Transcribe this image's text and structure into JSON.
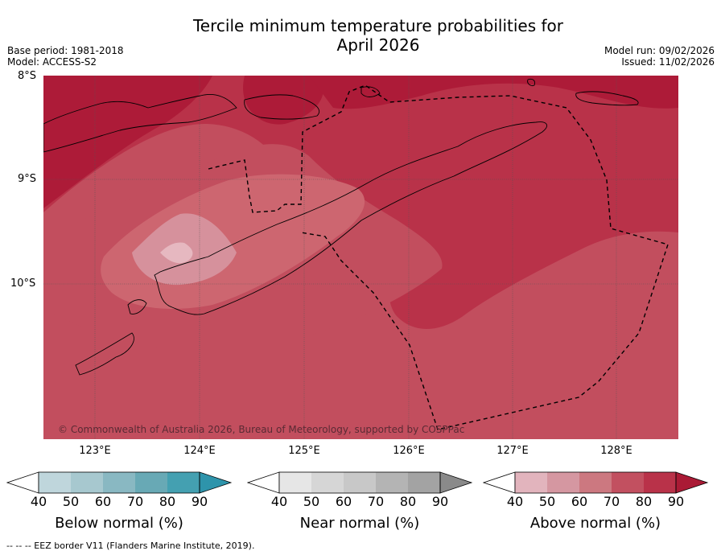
{
  "title_line1": "Tercile minimum temperature probabilities for",
  "title_line2": "April 2026",
  "base_period": "Base period: 1981-2018",
  "model": "Model: ACCESS-S2",
  "model_run": "Model run: 09/02/2026",
  "issued": "Issued: 11/02/2026",
  "lat_labels": [
    "8°S",
    "9°S",
    "10°S"
  ],
  "lon_labels": [
    "123°E",
    "124°E",
    "125°E",
    "126°E",
    "127°E",
    "128°E"
  ],
  "copyright": "© Commonwealth of Australia 2026, Bureau of Meteorology, supported by COSPPac",
  "legend": {
    "ticks": [
      "40",
      "50",
      "60",
      "70",
      "80",
      "90"
    ],
    "below": {
      "label": "Below normal (%)",
      "colors": [
        "#ffffff",
        "#bfd6dc",
        "#a7c8cf",
        "#89b8c2",
        "#68a9b5",
        "#44a0b1",
        "#2e94ab"
      ]
    },
    "near": {
      "label": "Near normal (%)",
      "colors": [
        "#ffffff",
        "#e6e6e6",
        "#d6d6d6",
        "#c8c8c8",
        "#b4b4b4",
        "#a3a3a3",
        "#8a8a8a"
      ]
    },
    "above": {
      "label": "Above normal (%)",
      "colors": [
        "#ffffff",
        "#e2b4bd",
        "#d597a1",
        "#cc7880",
        "#c25060",
        "#b93249",
        "#aa1a35"
      ]
    }
  },
  "eez_note": "-- -- -- EEZ border V11 (Flanders Marine Institute, 2019).",
  "colors": {
    "p60": "#cd6670",
    "p70": "#c24e5e",
    "p80": "#b93249",
    "p90": "#ad1b38"
  }
}
